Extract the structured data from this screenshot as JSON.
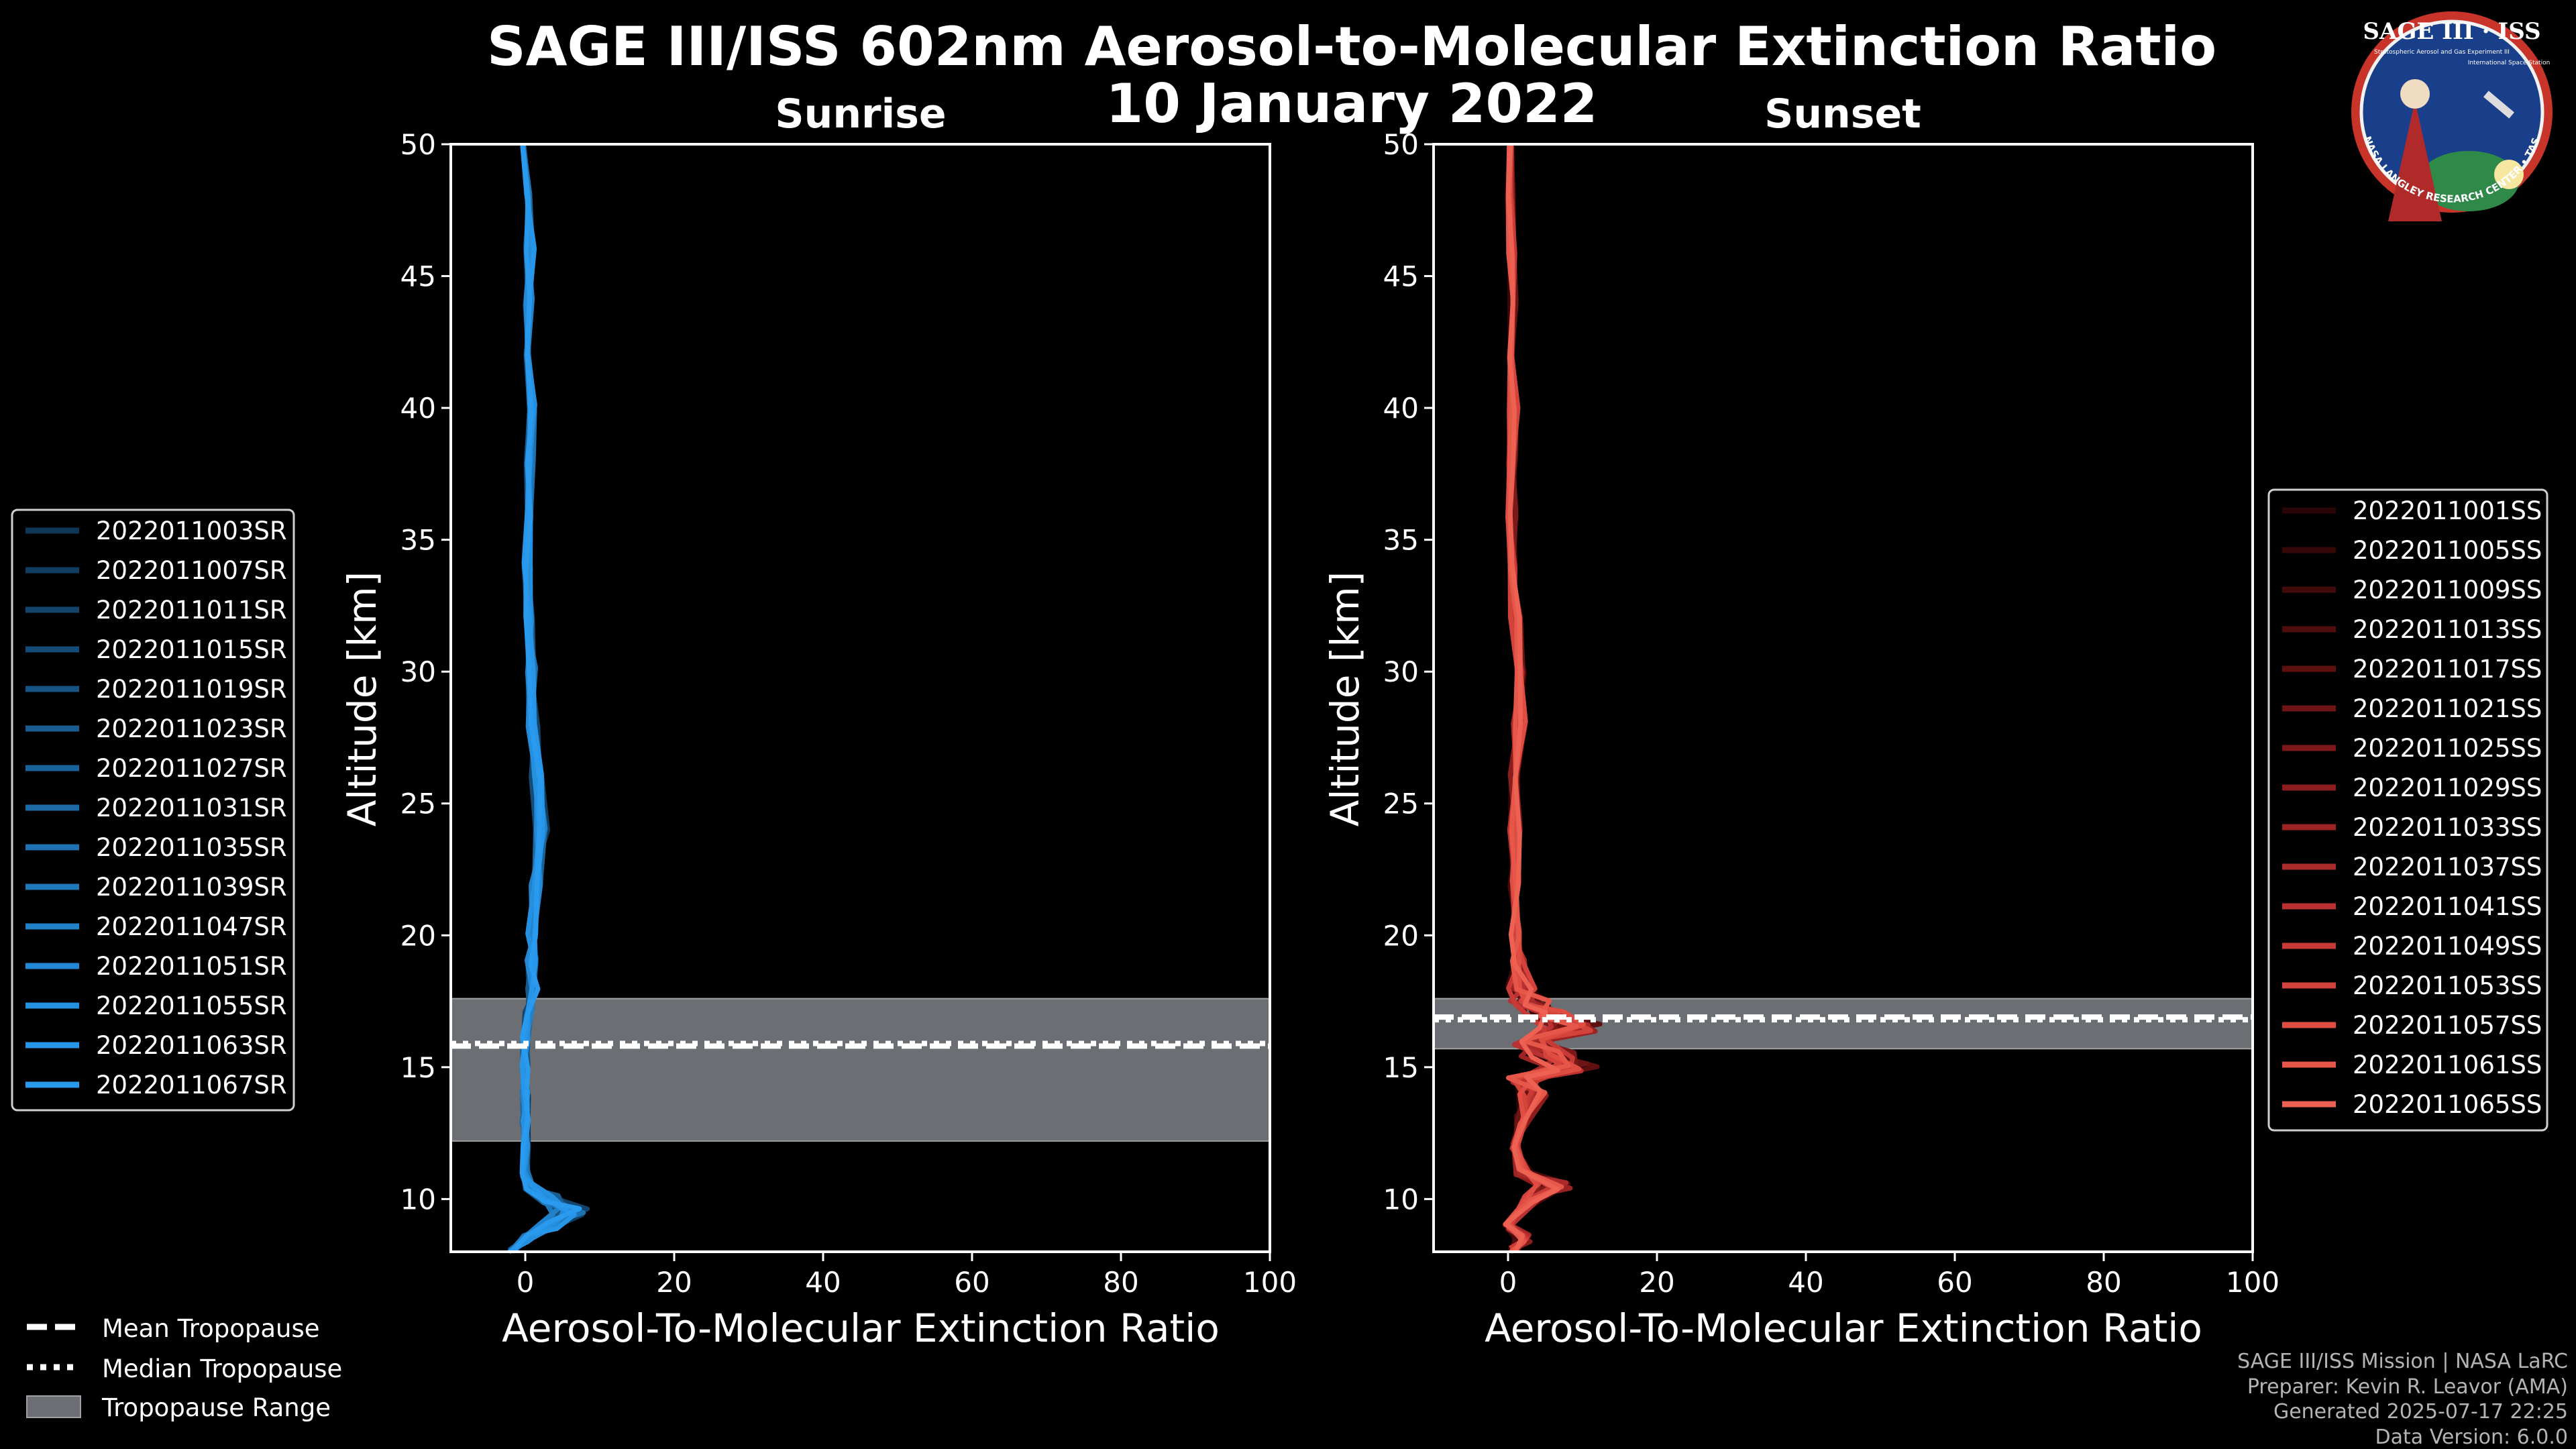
{
  "logo": {
    "title": "SAGE III · ISS",
    "subtitle": "Stratospheric Aerosol and Gas Experiment III",
    "station": "International Space Station",
    "ring": "BALL • NASA LANGLEY RESEARCH CENTER • TAS-I • ESA"
  },
  "credits": [
    "SAGE III/ISS Mission | NASA LaRC",
    "Preparer: Kevin R. Leavor (AMA)",
    "Generated 2025-07-17 22:25",
    "Data Version: 6.0.0"
  ],
  "summary_legend": {
    "mean": "Mean Tropopause",
    "median": "Median Tropopause",
    "range": "Tropopause Range"
  },
  "chart_data": [
    {
      "type": "line",
      "title": "SAGE III/ISS 602nm Aerosol-to-Molecular Extinction Ratio",
      "subtitle": "10 January 2022",
      "panel_title": "Sunrise",
      "xlabel": "Aerosol-To-Molecular Extinction Ratio",
      "ylabel": "Altitude [km]",
      "xlim": [
        -10,
        100
      ],
      "ylim": [
        8,
        50
      ],
      "xticks": [
        0,
        20,
        40,
        60,
        80,
        100
      ],
      "yticks": [
        10,
        15,
        20,
        25,
        30,
        35,
        40,
        45,
        50
      ],
      "tropopause": {
        "mean": 15.8,
        "median": 15.9,
        "range": [
          12.2,
          17.6
        ]
      },
      "legend_position": "left",
      "series_names": [
        "2022011003SR",
        "2022011007SR",
        "2022011011SR",
        "2022011015SR",
        "2022011019SR",
        "2022011023SR",
        "2022011027SR",
        "2022011031SR",
        "2022011035SR",
        "2022011039SR",
        "2022011047SR",
        "2022011051SR",
        "2022011055SR",
        "2022011063SR",
        "2022011067SR"
      ],
      "series_colors": [
        "#0f3654",
        "#113d60",
        "#13456c",
        "#154c77",
        "#175483",
        "#195b8f",
        "#1a639a",
        "#1c6aa6",
        "#1e72b2",
        "#2079bd",
        "#2181c9",
        "#2388d5",
        "#2590e0",
        "#2795e8",
        "#2a9aef"
      ],
      "representative_profile": {
        "altitude": [
          8,
          8.5,
          9,
          9.5,
          10,
          10.5,
          11,
          12,
          13,
          14,
          15,
          16,
          17,
          18,
          19,
          20,
          22,
          24,
          26,
          28,
          30,
          32,
          34,
          36,
          38,
          40,
          42,
          44,
          46,
          48,
          50
        ],
        "ratio": [
          -3,
          0,
          3,
          6,
          3,
          0.5,
          0,
          0,
          0,
          0,
          0,
          0,
          0.5,
          1,
          1,
          1,
          1.5,
          2,
          1.5,
          1,
          0.8,
          0.5,
          0.3,
          0.5,
          0.6,
          0.8,
          0.5,
          0.5,
          0.6,
          0.5,
          0
        ]
      }
    },
    {
      "type": "line",
      "panel_title": "Sunset",
      "xlabel": "Aerosol-To-Molecular Extinction Ratio",
      "ylabel": "Altitude [km]",
      "xlim": [
        -10,
        100
      ],
      "ylim": [
        8,
        50
      ],
      "xticks": [
        0,
        20,
        40,
        60,
        80,
        100
      ],
      "yticks": [
        10,
        15,
        20,
        25,
        30,
        35,
        40,
        45,
        50
      ],
      "tropopause": {
        "mean": 16.9,
        "median": 16.8,
        "range": [
          15.7,
          17.6
        ]
      },
      "legend_position": "right",
      "series_names": [
        "2022011001SS",
        "2022011005SS",
        "2022011009SS",
        "2022011013SS",
        "2022011017SS",
        "2022011021SS",
        "2022011025SS",
        "2022011029SS",
        "2022011033SS",
        "2022011037SS",
        "2022011041SS",
        "2022011049SS",
        "2022011053SS",
        "2022011057SS",
        "2022011061SS",
        "2022011065SS"
      ],
      "series_colors": [
        "#2a0505",
        "#360707",
        "#430a0a",
        "#500d0d",
        "#5e1010",
        "#6d1414",
        "#7c1818",
        "#8c1d1d",
        "#9c2323",
        "#ab2a2a",
        "#ba3131",
        "#c83a35",
        "#d4433b",
        "#df4d42",
        "#e65649",
        "#ec6152"
      ],
      "representative_profile": {
        "altitude": [
          8,
          8.5,
          9,
          10,
          10.5,
          11,
          12,
          13,
          14,
          14.5,
          15,
          15.5,
          16,
          16.5,
          17,
          17.5,
          18,
          19,
          20,
          22,
          24,
          26,
          28,
          30,
          32,
          34,
          36,
          38,
          40,
          42,
          44,
          46,
          48,
          50
        ],
        "ratio": [
          1,
          2,
          0,
          3,
          6,
          2,
          1,
          2,
          4,
          2,
          8,
          6,
          3,
          9,
          5,
          3,
          2,
          1.5,
          1,
          1,
          1,
          1,
          1.5,
          1.5,
          1,
          0.5,
          0.5,
          0.5,
          0.8,
          0.5,
          0.5,
          0.5,
          0.3,
          0.5
        ]
      }
    }
  ]
}
